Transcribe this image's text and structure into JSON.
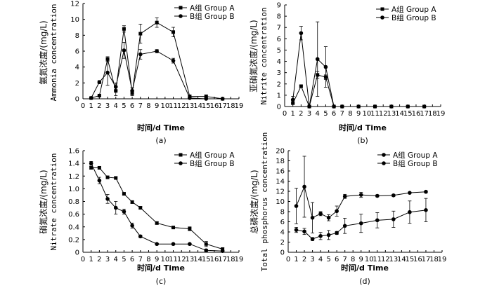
{
  "figure": {
    "panels": [
      {
        "id": "a",
        "caption": "(a)",
        "xlabel": "时间/d Time",
        "ylabel_cn": "氨氮浓度/(mg/L)",
        "ylabel_en": "Ammonia concentration",
        "legend_position": "top-right",
        "chart_data": {
          "type": "line",
          "x_ticks": [
            0,
            1,
            2,
            3,
            4,
            5,
            6,
            7,
            8,
            9,
            10,
            11,
            12,
            13,
            14,
            15,
            16,
            17,
            18,
            19
          ],
          "xlim": [
            0,
            19
          ],
          "ylim": [
            0,
            12
          ],
          "y_ticks": [
            0,
            2,
            4,
            6,
            8,
            10,
            12
          ],
          "series": [
            {
              "name": "A组 Group A",
              "marker": "square",
              "x": [
                1,
                2,
                3,
                4,
                5,
                6,
                7,
                9,
                11,
                13,
                15,
                17
              ],
              "y": [
                0.1,
                0.4,
                5.0,
                1.0,
                8.8,
                0.7,
                8.2,
                9.6,
                8.4,
                0.3,
                0.3,
                0.0
              ],
              "err": [
                0.05,
                0.1,
                0.3,
                0.6,
                0.4,
                0.3,
                1.2,
                0.6,
                0.6,
                0.2,
                0.2,
                0.05
              ]
            },
            {
              "name": "B组 Group B",
              "marker": "circle",
              "x": [
                1,
                2,
                3,
                4,
                5,
                6,
                7,
                9,
                11,
                13,
                15,
                17
              ],
              "y": [
                0.1,
                2.1,
                3.3,
                1.5,
                6.1,
                1.0,
                5.6,
                6.0,
                4.8,
                0.1,
                0.0,
                0.0
              ],
              "err": [
                0.05,
                0.2,
                1.6,
                0.5,
                1.0,
                0.4,
                0.6,
                0.2,
                0.3,
                0.1,
                0.1,
                0.05
              ]
            }
          ]
        }
      },
      {
        "id": "b",
        "caption": "(b)",
        "xlabel": "时间/d Time",
        "ylabel_cn": "亚硝氮浓度/(mg/L)",
        "ylabel_en": "Nitrite concentration",
        "legend_position": "top-right",
        "chart_data": {
          "type": "line",
          "x_ticks": [
            0,
            1,
            2,
            3,
            4,
            5,
            6,
            7,
            8,
            9,
            10,
            11,
            12,
            13,
            14,
            15,
            16,
            17,
            18,
            19
          ],
          "xlim": [
            0,
            19
          ],
          "ylim": [
            0,
            9
          ],
          "y_ticks": [
            0,
            1,
            2,
            3,
            4,
            5,
            6,
            7,
            8,
            9
          ],
          "series": [
            {
              "name": "A组 Group A",
              "marker": "square",
              "x": [
                1,
                2,
                3,
                4,
                5,
                6,
                7,
                9,
                11,
                13,
                15,
                17
              ],
              "y": [
                0.3,
                1.8,
                0.0,
                2.8,
                2.6,
                0.0,
                0.0,
                0.0,
                0.0,
                0.0,
                0.0,
                0.0
              ],
              "err": [
                0.1,
                0.1,
                0.05,
                0.3,
                0.2,
                0.02,
                0.02,
                0.02,
                0.02,
                0.02,
                0.02,
                0.02
              ]
            },
            {
              "name": "B组 Group B",
              "marker": "circle",
              "x": [
                1,
                2,
                3,
                4,
                5,
                6,
                7,
                9,
                11,
                13,
                15,
                17
              ],
              "y": [
                0.6,
                6.5,
                0.0,
                4.2,
                3.5,
                0.0,
                0.0,
                0.0,
                0.0,
                0.0,
                0.0,
                0.0
              ],
              "err": [
                0.3,
                0.6,
                0.05,
                3.3,
                1.8,
                0.02,
                0.02,
                0.02,
                0.02,
                0.02,
                0.02,
                0.02
              ]
            }
          ]
        }
      },
      {
        "id": "c",
        "caption": "(c)",
        "xlabel": "时间/d Time",
        "ylabel_cn": "硝氮浓度/(mg/L)",
        "ylabel_en": "Nitrate concentration",
        "legend_position": "top-right",
        "chart_data": {
          "type": "line",
          "x_ticks": [
            0,
            1,
            2,
            3,
            4,
            5,
            6,
            7,
            8,
            9,
            10,
            11,
            12,
            13,
            14,
            15,
            16,
            17,
            18,
            19
          ],
          "xlim": [
            0,
            19
          ],
          "ylim": [
            0,
            1.6
          ],
          "y_ticks": [
            0,
            0.2,
            0.4,
            0.6,
            0.8,
            1.0,
            1.2,
            1.4,
            1.6
          ],
          "y_tick_labels": [
            "0",
            "0.2",
            "0.4",
            "0.6",
            "0.8",
            "1.0",
            "1.2",
            "1.4",
            "1.6"
          ],
          "series": [
            {
              "name": "A组 Group A",
              "marker": "square",
              "x": [
                1,
                2,
                3,
                4,
                5,
                6,
                7,
                9,
                11,
                13,
                15,
                17
              ],
              "y": [
                1.33,
                1.33,
                1.18,
                1.17,
                0.92,
                0.79,
                0.7,
                0.46,
                0.39,
                0.37,
                0.13,
                0.05
              ],
              "err": [
                0.02,
                0.02,
                0.02,
                0.02,
                0.02,
                0.02,
                0.02,
                0.02,
                0.02,
                0.03,
                0.04,
                0.02
              ]
            },
            {
              "name": "B组 Group B",
              "marker": "circle",
              "x": [
                1,
                2,
                3,
                4,
                5,
                6,
                7,
                9,
                11,
                13,
                15,
                17
              ],
              "y": [
                1.4,
                1.13,
                0.84,
                0.7,
                0.64,
                0.42,
                0.25,
                0.13,
                0.13,
                0.13,
                0.03,
                0.02
              ],
              "err": [
                0.03,
                0.05,
                0.07,
                0.1,
                0.04,
                0.04,
                0.02,
                0.01,
                0.01,
                0.01,
                0.02,
                0.01
              ]
            }
          ]
        }
      },
      {
        "id": "d",
        "caption": "(d)",
        "xlabel": "时间/d Time",
        "ylabel_cn": "总磷浓度/(mg/L)",
        "ylabel_en": "Total phosphorus concentration",
        "legend_position": "top-right",
        "chart_data": {
          "type": "line",
          "x_ticks": [
            0,
            1,
            2,
            3,
            4,
            5,
            6,
            7,
            8,
            9,
            10,
            11,
            12,
            13,
            14,
            15,
            16,
            17,
            18,
            19
          ],
          "xlim": [
            0,
            19
          ],
          "ylim": [
            0,
            20
          ],
          "y_ticks": [
            0,
            2,
            4,
            6,
            8,
            10,
            12,
            14,
            16,
            18,
            20
          ],
          "series": [
            {
              "name": "A组 Group A",
              "marker": "circle",
              "x": [
                1,
                2,
                3,
                4,
                5,
                6,
                7,
                9,
                11,
                13,
                15,
                17
              ],
              "y": [
                4.4,
                4.1,
                2.6,
                3.2,
                3.4,
                3.8,
                5.2,
                5.7,
                6.3,
                6.5,
                7.9,
                8.3
              ],
              "err": [
                0.5,
                0.6,
                0.3,
                0.7,
                0.9,
                0.3,
                1.5,
                1.8,
                1.5,
                1.6,
                2.2,
                2.3
              ]
            },
            {
              "name": "B组 Group B",
              "marker": "circle",
              "x": [
                1,
                2,
                3,
                4,
                5,
                6,
                7,
                9,
                11,
                13,
                15,
                17
              ],
              "y": [
                9.1,
                12.9,
                6.8,
                7.6,
                6.8,
                8.1,
                11.0,
                11.3,
                11.1,
                11.2,
                11.7,
                11.9
              ],
              "err": [
                3.5,
                6.0,
                3.0,
                0.4,
                0.6,
                1.0,
                0.4,
                0.5,
                0.2,
                0.2,
                0.1,
                0.2
              ]
            }
          ]
        }
      }
    ]
  }
}
